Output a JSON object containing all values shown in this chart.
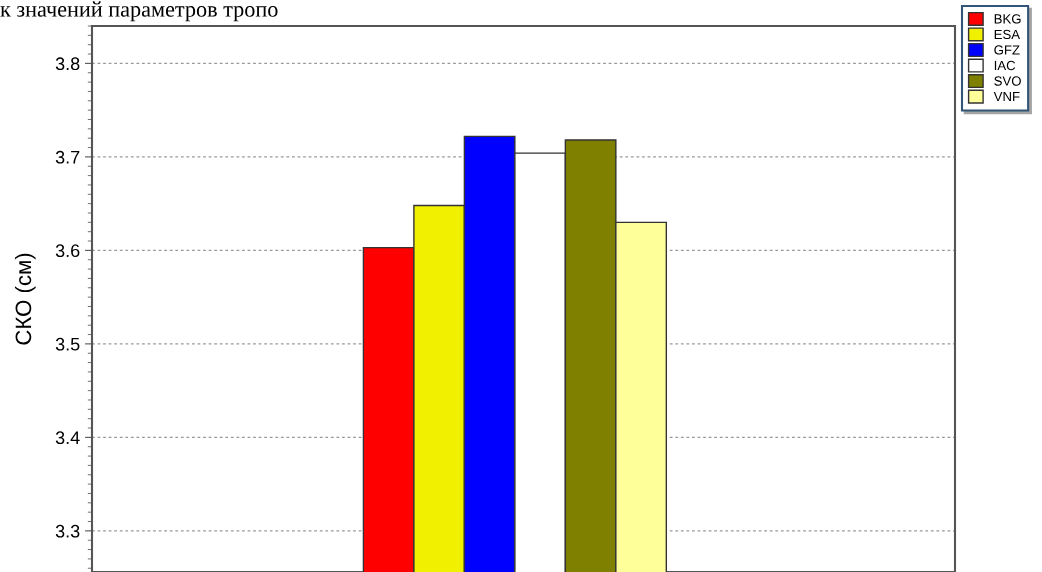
{
  "chart_data": {
    "type": "bar",
    "ylabel": "СКО (см)",
    "annotations": [
      "к значений параметров тропо"
    ],
    "categories": [
      null
    ],
    "series": [
      {
        "name": "BKG",
        "color": "#ff0000",
        "values": [
          3.603
        ]
      },
      {
        "name": "ESA",
        "color": "#f0f000",
        "values": [
          3.648
        ]
      },
      {
        "name": "GFZ",
        "color": "#0000ff",
        "values": [
          3.722
        ]
      },
      {
        "name": "IAC",
        "color": "#ffffff",
        "values": [
          3.704
        ]
      },
      {
        "name": "SVO",
        "color": "#808000",
        "values": [
          3.718
        ]
      },
      {
        "name": "VNF",
        "color": "#ffff99",
        "values": [
          3.63
        ]
      }
    ],
    "ylim": [
      3.256,
      3.84
    ],
    "yticks": [
      3.3,
      3.4,
      3.5,
      3.6,
      3.7,
      3.8
    ],
    "grid": "y",
    "legend": "top right",
    "tick_labels": "y"
  }
}
